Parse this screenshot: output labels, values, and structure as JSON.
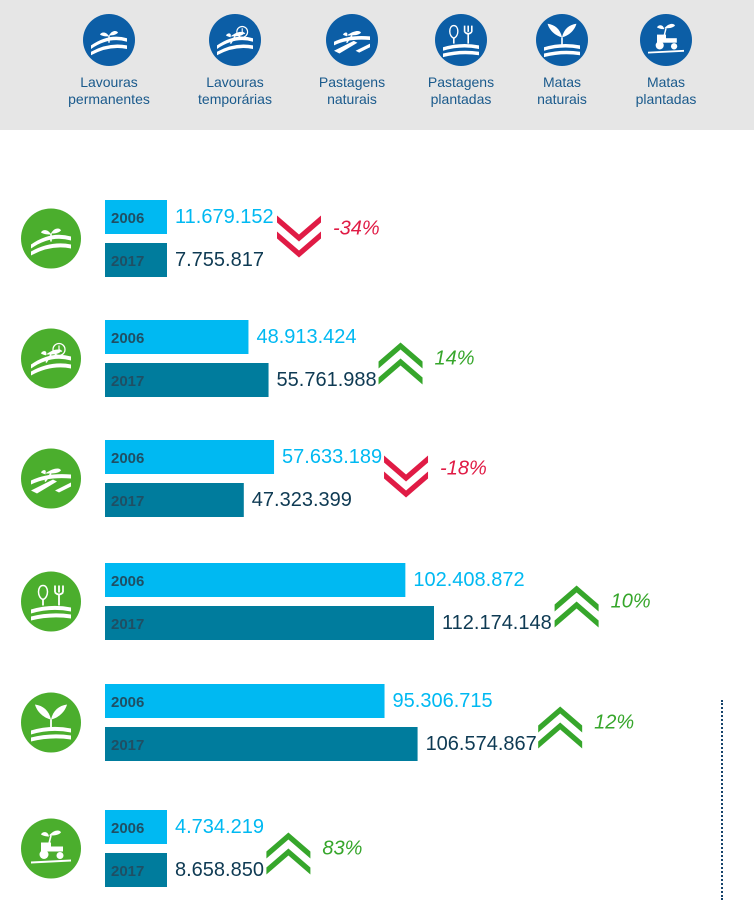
{
  "colors": {
    "legend_icon_bg": "#0c5ea6",
    "row_icon_bg": "#4bae2d",
    "bar_2006": "#00b9f2",
    "bar_2017": "#007c9d",
    "text_2006": "#00b9f2",
    "text_2017": "#0e3a53",
    "bar_label": "#1f4f64",
    "increase": "#36a62b",
    "decrease": "#e01b45"
  },
  "legend": [
    {
      "icon": "permanent-crops-icon",
      "lines": [
        "Lavouras",
        "permanentes"
      ]
    },
    {
      "icon": "temporary-crops-icon",
      "lines": [
        "Lavouras",
        "temporárias"
      ]
    },
    {
      "icon": "natural-pasture-icon",
      "lines": [
        "Pastagens",
        "naturais"
      ]
    },
    {
      "icon": "planted-pasture-icon",
      "lines": [
        "Pastagens",
        "plantadas"
      ]
    },
    {
      "icon": "natural-forest-icon",
      "lines": [
        "Matas",
        "naturais"
      ]
    },
    {
      "icon": "planted-forest-icon",
      "lines": [
        "Matas",
        "plantadas"
      ]
    }
  ],
  "chart_data": {
    "type": "bar",
    "orientation": "horizontal",
    "categories": [
      "Lavouras permanentes",
      "Lavouras temporárias",
      "Pastagens naturais",
      "Pastagens plantadas",
      "Matas naturais",
      "Matas plantadas"
    ],
    "series": [
      {
        "name": "2006",
        "values": [
          11679152,
          48913424,
          57633189,
          102408872,
          95306715,
          4734219
        ],
        "labels": [
          "11.679.152",
          "48.913.424",
          "57.633.189",
          "102.408.872",
          "95.306.715",
          "4.734.219"
        ]
      },
      {
        "name": "2017",
        "values": [
          7755817,
          55761988,
          47323399,
          112174148,
          106574867,
          8658850
        ],
        "labels": [
          "7.755.817",
          "55.761.988",
          "47.323.399",
          "112.174.148",
          "106.574.867",
          "8.658.850"
        ]
      }
    ],
    "changes": [
      {
        "label": "-34%",
        "value": -34,
        "direction": "down"
      },
      {
        "label": "14%",
        "value": 14,
        "direction": "up"
      },
      {
        "label": "-18%",
        "value": -18,
        "direction": "down"
      },
      {
        "label": "10%",
        "value": 10,
        "direction": "up"
      },
      {
        "label": "12%",
        "value": 12,
        "direction": "up"
      },
      {
        "label": "83%",
        "value": 83,
        "direction": "up"
      }
    ],
    "row_icons": [
      "permanent-crops-icon",
      "temporary-crops-icon",
      "natural-pasture-icon",
      "planted-pasture-icon",
      "natural-forest-icon",
      "planted-forest-icon"
    ],
    "xlim": [
      0,
      112174148
    ],
    "grid": false,
    "legend": "top"
  }
}
